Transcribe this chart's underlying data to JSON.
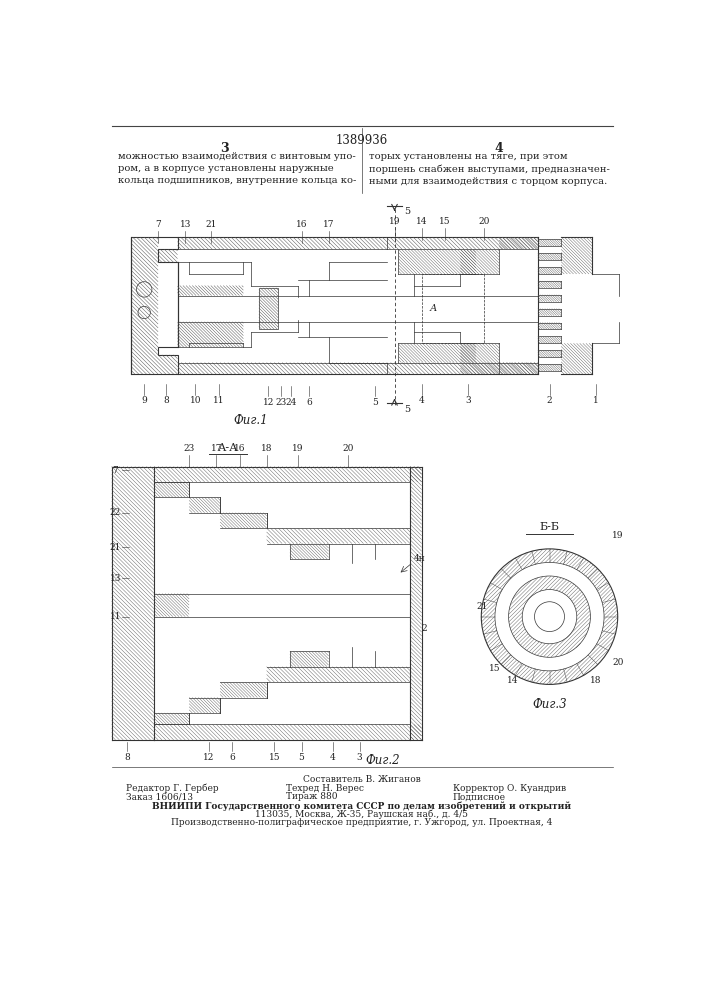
{
  "patent_number": "1389936",
  "text_left": "можностью взаимодействия с винтовым упо-\nром, а в корпусе установлены наружные\nкольца подшипников, внутренние кольца ко-",
  "text_right": "торых установлены на тяге, при этом\nпоршень снабжен выступами, предназначен-\nными для взаимодействия с торцом корпуса.",
  "fig1_label": "Фиг.1",
  "fig2_label": "Фиг.2",
  "fig3_label": "Фиг.3",
  "section_aa": "А-А",
  "section_bb": "Б-Б",
  "footer_composer": "Составитель В. Жиганов",
  "footer_editor": "Редактор Г. Гербер",
  "footer_tech": "Техред Н. Верес",
  "footer_corrector": "Корректор О. Куандрив",
  "footer_order": "Заказ 1606/13",
  "footer_copies": "Тираж 880",
  "footer_signed": "Подписное",
  "footer_org": "ВНИИПИ Государственного комитета СССР по делам изобретений и открытий",
  "footer_addr": "113035, Москва, Ж-35, Раушская наб., д. 4/5",
  "footer_print": "Производственно-полиграфическое предприятие, г. Ужгород, ул. Проектная, 4",
  "bg_color": "#ffffff",
  "text_color": "#222222",
  "line_color": "#444444"
}
